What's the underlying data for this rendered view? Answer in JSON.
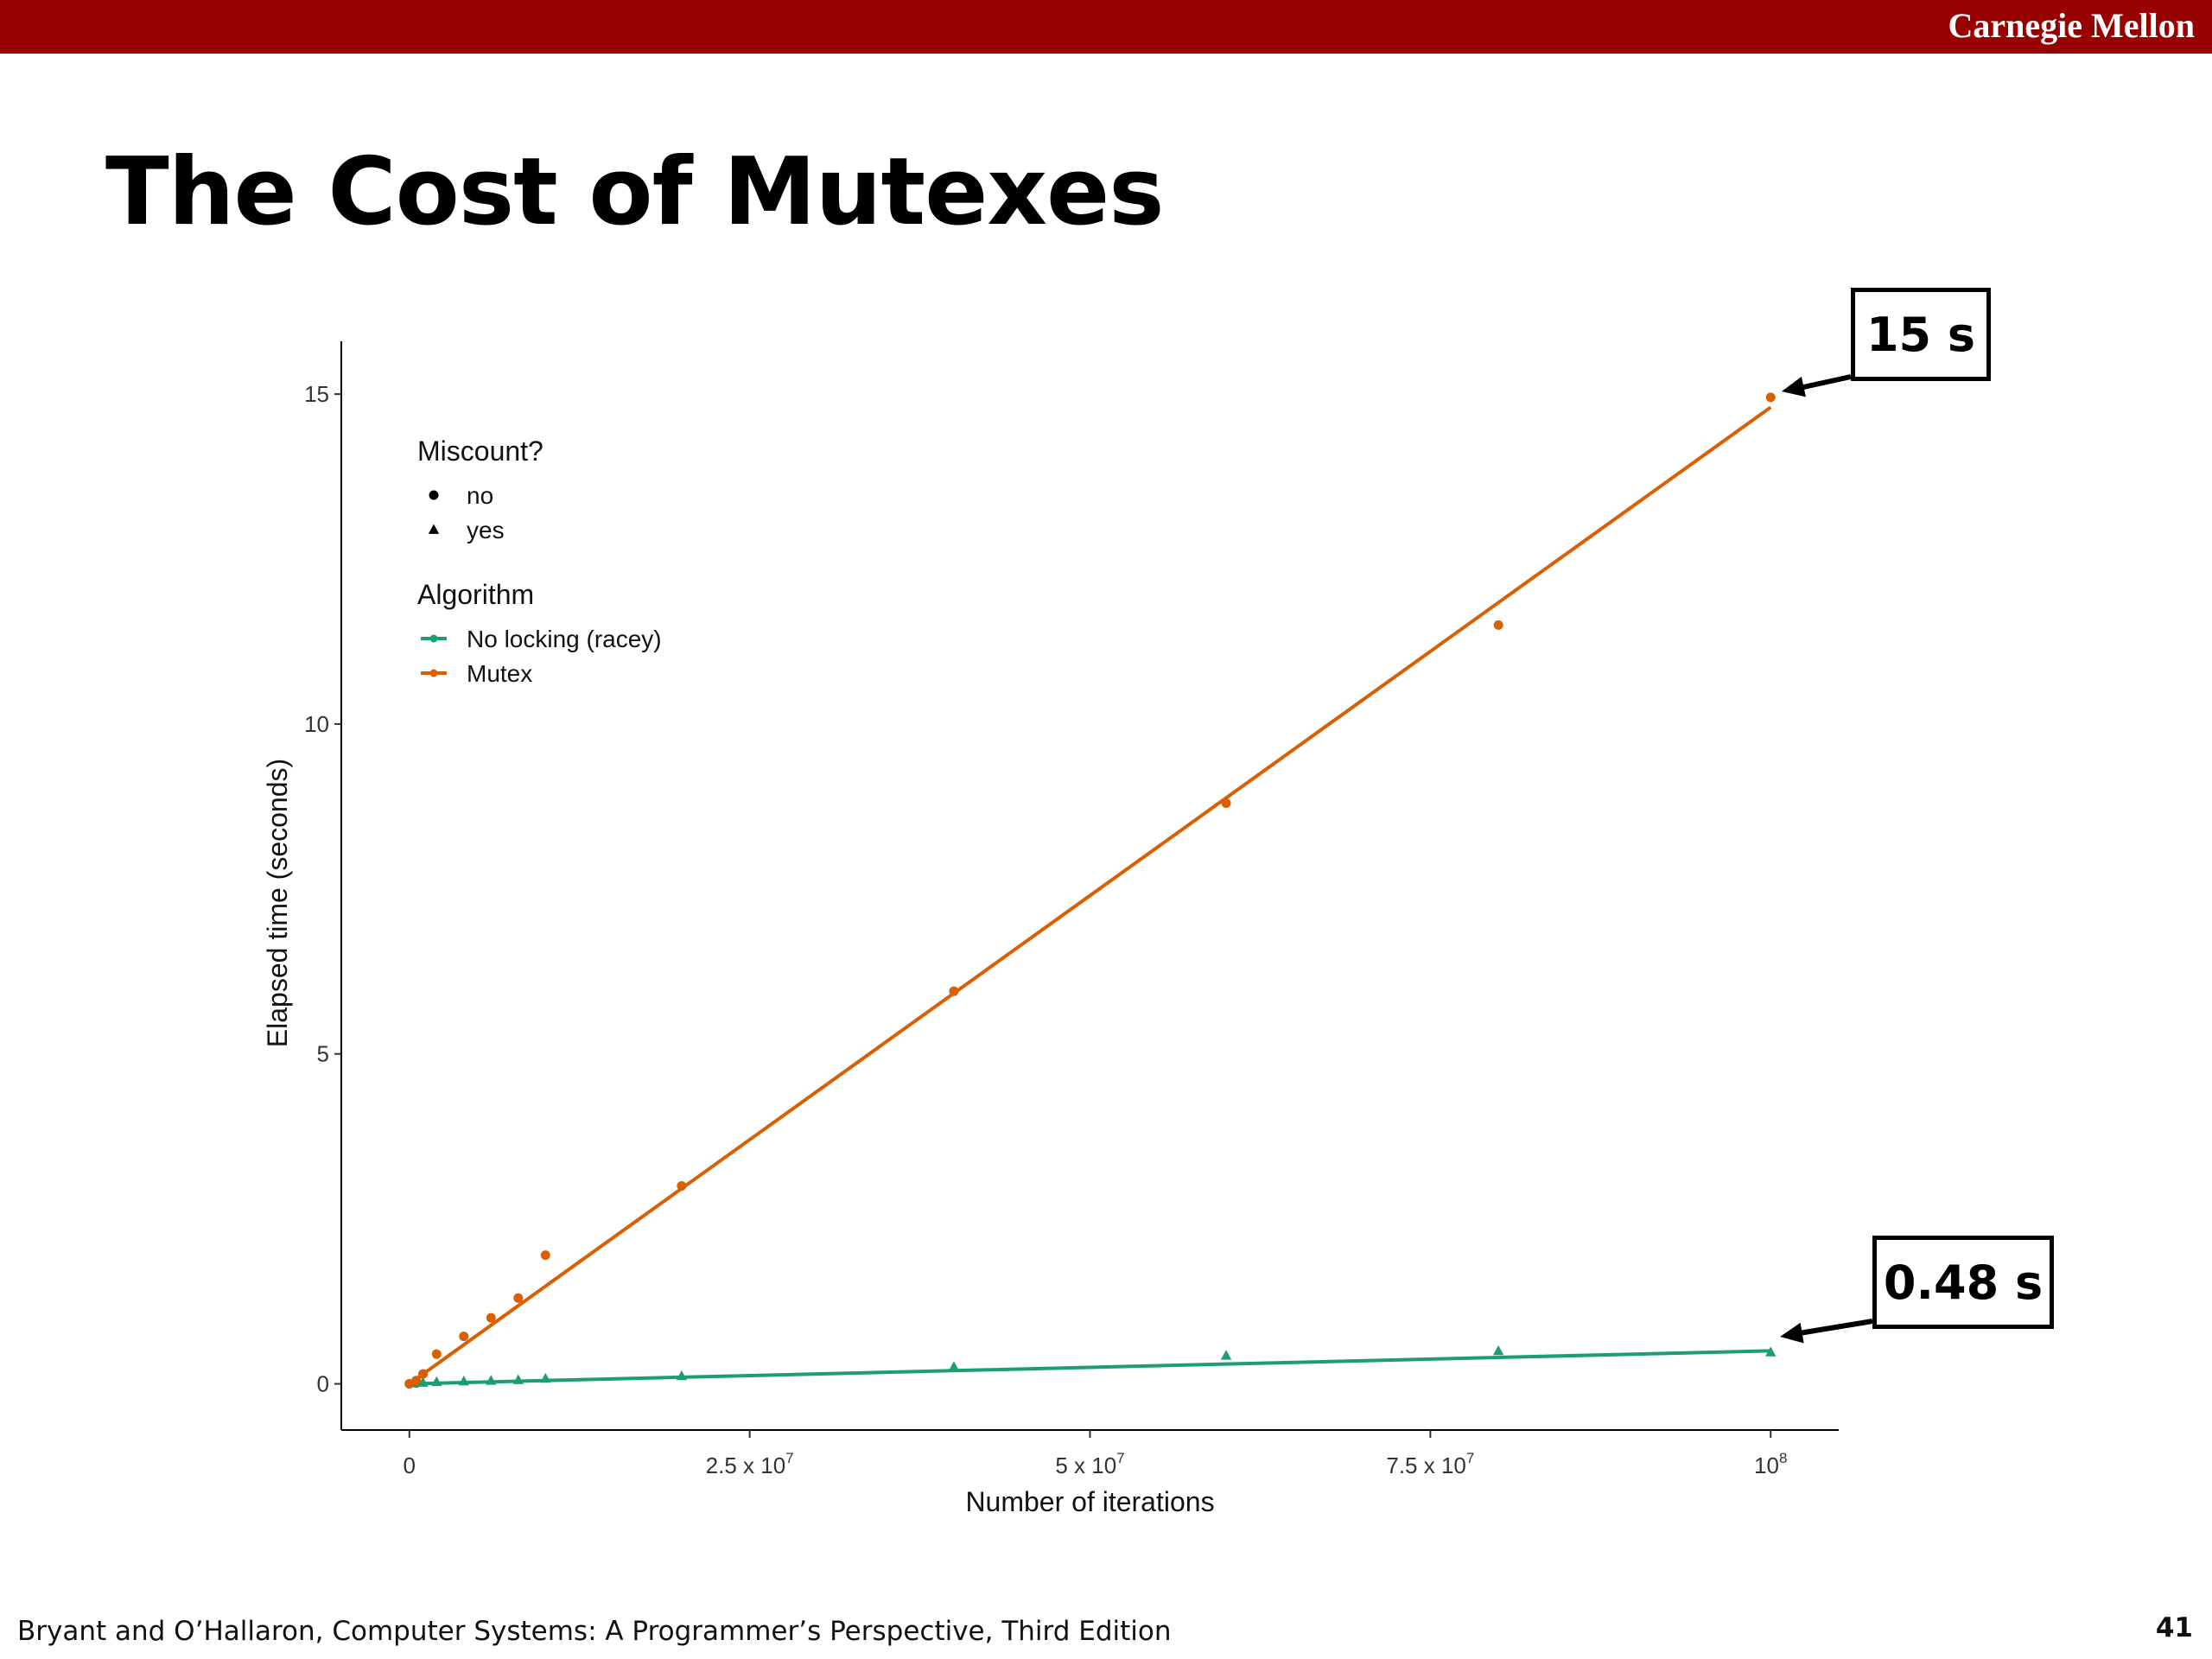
{
  "header": {
    "brand": "Carnegie Mellon"
  },
  "slide": {
    "title": "The Cost of Mutexes"
  },
  "callouts": {
    "top": "15 s",
    "bottom": "0.48 s"
  },
  "footer": {
    "citation": "Bryant and O’Hallaron, Computer Systems: A Programmer’s Perspective, Third Edition",
    "page": "41"
  },
  "colors": {
    "brand": "#990000",
    "no_locking": "#1b9e77",
    "mutex": "#d95f02"
  },
  "chart_data": {
    "type": "scatter",
    "title": "",
    "xlabel": "Number of iterations",
    "ylabel": "Elapsed time (seconds)",
    "xlim": [
      -5000000,
      105000000
    ],
    "ylim": [
      -0.7,
      15.8
    ],
    "x_ticks": [
      {
        "value": 0,
        "mantissa": "0",
        "exp": ""
      },
      {
        "value": 25000000,
        "mantissa": "2.5 x 10",
        "exp": "7"
      },
      {
        "value": 50000000,
        "mantissa": "5 x 10",
        "exp": "7"
      },
      {
        "value": 75000000,
        "mantissa": "7.5 x 10",
        "exp": "7"
      },
      {
        "value": 100000000,
        "mantissa": "10",
        "exp": "8"
      }
    ],
    "y_ticks": [
      {
        "value": 0,
        "label": "0"
      },
      {
        "value": 5,
        "label": "5"
      },
      {
        "value": 10,
        "label": "10"
      },
      {
        "value": 15,
        "label": "15"
      }
    ],
    "grid": false,
    "legend": {
      "position": "top-left",
      "shape_title": "Miscount?",
      "shape_items": [
        {
          "label": "no",
          "shape": "circle"
        },
        {
          "label": "yes",
          "shape": "triangle"
        }
      ],
      "color_title": "Algorithm",
      "color_items": [
        {
          "label": "No locking (racey)",
          "color": "#1b9e77"
        },
        {
          "label": "Mutex",
          "color": "#d95f02"
        }
      ]
    },
    "series": [
      {
        "name": "No locking (racey)",
        "color": "#1b9e77",
        "fit": [
          [
            0,
            0.0
          ],
          [
            100000000,
            0.5
          ]
        ],
        "points": [
          {
            "x": 0,
            "y": 0.0,
            "miscount": "no"
          },
          {
            "x": 500000,
            "y": 0.01,
            "miscount": "no"
          },
          {
            "x": 1000000,
            "y": 0.02,
            "miscount": "yes"
          },
          {
            "x": 2000000,
            "y": 0.03,
            "miscount": "yes"
          },
          {
            "x": 4000000,
            "y": 0.04,
            "miscount": "yes"
          },
          {
            "x": 6000000,
            "y": 0.05,
            "miscount": "yes"
          },
          {
            "x": 8000000,
            "y": 0.06,
            "miscount": "yes"
          },
          {
            "x": 10000000,
            "y": 0.08,
            "miscount": "yes"
          },
          {
            "x": 20000000,
            "y": 0.12,
            "miscount": "yes"
          },
          {
            "x": 40000000,
            "y": 0.26,
            "miscount": "yes"
          },
          {
            "x": 60000000,
            "y": 0.43,
            "miscount": "yes"
          },
          {
            "x": 80000000,
            "y": 0.5,
            "miscount": "yes"
          },
          {
            "x": 100000000,
            "y": 0.48,
            "miscount": "yes"
          }
        ]
      },
      {
        "name": "Mutex",
        "color": "#d95f02",
        "fit": [
          [
            0,
            0.0
          ],
          [
            100000000,
            14.8
          ]
        ],
        "points": [
          {
            "x": 0,
            "y": 0.0,
            "miscount": "no"
          },
          {
            "x": 500000,
            "y": 0.05,
            "miscount": "no"
          },
          {
            "x": 1000000,
            "y": 0.15,
            "miscount": "no"
          },
          {
            "x": 2000000,
            "y": 0.45,
            "miscount": "no"
          },
          {
            "x": 4000000,
            "y": 0.72,
            "miscount": "no"
          },
          {
            "x": 6000000,
            "y": 1.0,
            "miscount": "no"
          },
          {
            "x": 8000000,
            "y": 1.3,
            "miscount": "no"
          },
          {
            "x": 10000000,
            "y": 1.95,
            "miscount": "no"
          },
          {
            "x": 20000000,
            "y": 3.0,
            "miscount": "no"
          },
          {
            "x": 40000000,
            "y": 5.95,
            "miscount": "no"
          },
          {
            "x": 60000000,
            "y": 8.8,
            "miscount": "no"
          },
          {
            "x": 80000000,
            "y": 11.5,
            "miscount": "no"
          },
          {
            "x": 100000000,
            "y": 14.95,
            "miscount": "no"
          }
        ]
      }
    ]
  }
}
